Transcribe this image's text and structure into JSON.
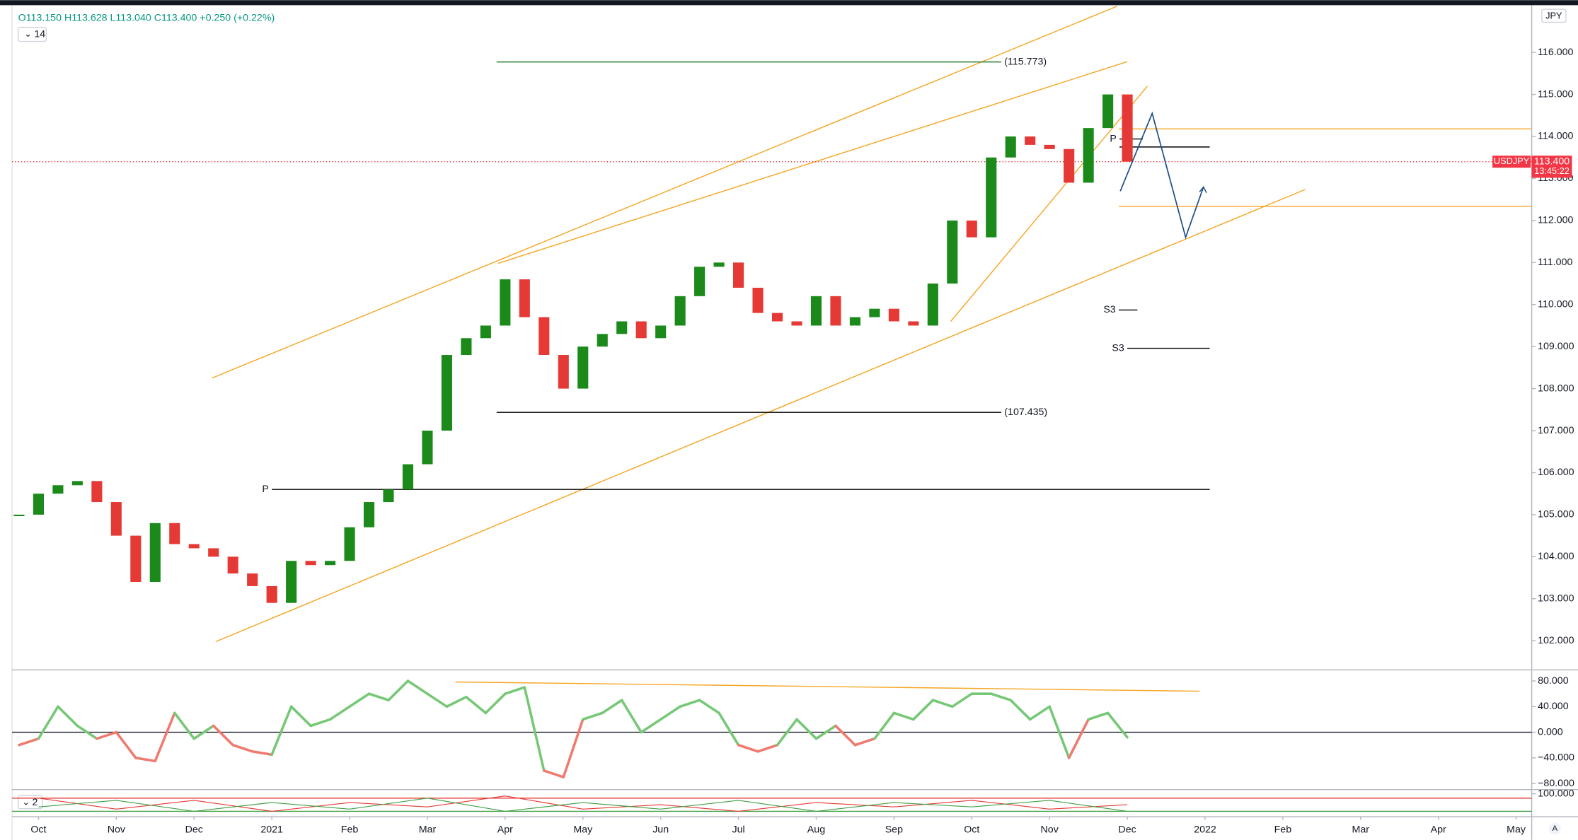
{
  "header": {
    "ohlc": "O113.150 H113.628 L113.040 C113.400 +0.250 (+0.22%)",
    "interval_badge": "14",
    "pane3_badge": "2",
    "currency": "JPY",
    "auto_button": "A"
  },
  "price_tag": {
    "value": 113.4,
    "label": "113.400",
    "countdown": "13:45:22"
  },
  "chart_data": [
    {
      "type": "candle",
      "xlim": [
        -0.34,
        19.2
      ],
      "ylim": [
        101.33,
        117.1
      ],
      "xticks": [
        {
          "value": 0,
          "label": "Oct"
        },
        {
          "value": 1,
          "label": "Nov"
        },
        {
          "value": 2,
          "label": "Dec"
        },
        {
          "value": 3,
          "label": "2021"
        },
        {
          "value": 4,
          "label": "Feb"
        },
        {
          "value": 5,
          "label": "Mar"
        },
        {
          "value": 6,
          "label": "Apr"
        },
        {
          "value": 7,
          "label": "May"
        },
        {
          "value": 8,
          "label": "Jun"
        },
        {
          "value": 9,
          "label": "Jul"
        },
        {
          "value": 10,
          "label": "Aug"
        },
        {
          "value": 11,
          "label": "Sep"
        },
        {
          "value": 12,
          "label": "Oct"
        },
        {
          "value": 13,
          "label": "Nov"
        },
        {
          "value": 14,
          "label": "Dec"
        },
        {
          "value": 15,
          "label": "2022"
        },
        {
          "value": 16,
          "label": "Feb"
        },
        {
          "value": 17,
          "label": "Mar"
        },
        {
          "value": 18,
          "label": "Apr"
        },
        {
          "value": 19,
          "label": "May"
        }
      ],
      "yticks": [
        {
          "value": 102,
          "label": "102.000"
        },
        {
          "value": 103,
          "label": "103.000"
        },
        {
          "value": 104,
          "label": "104.000"
        },
        {
          "value": 105,
          "label": "105.000"
        },
        {
          "value": 106,
          "label": "106.000"
        },
        {
          "value": 107,
          "label": "107.000"
        },
        {
          "value": 108,
          "label": "108.000"
        },
        {
          "value": 109,
          "label": "109.000"
        },
        {
          "value": 110,
          "label": "110.000"
        },
        {
          "value": 111,
          "label": "111.000"
        },
        {
          "value": 112,
          "label": "112.000"
        },
        {
          "value": 113,
          "label": "113.000"
        },
        {
          "value": 114,
          "label": "114.000"
        },
        {
          "value": 115,
          "label": "115.000"
        },
        {
          "value": 116,
          "label": "116.000"
        }
      ],
      "x": [
        -0.25,
        0,
        0.25,
        0.5,
        0.75,
        1,
        1.25,
        1.5,
        1.75,
        2,
        2.25,
        2.5,
        2.75,
        3,
        3.25,
        3.5,
        3.75,
        4,
        4.25,
        4.5,
        4.75,
        5,
        5.25,
        5.5,
        5.75,
        6,
        6.25,
        6.5,
        6.75,
        7,
        7.25,
        7.5,
        7.75,
        8,
        8.25,
        8.5,
        8.75,
        9,
        9.25,
        9.5,
        9.75,
        10,
        10.25,
        10.5,
        10.75,
        11,
        11.25,
        11.5,
        11.75,
        12,
        12.25,
        12.5,
        12.75,
        13,
        13.25,
        13.5,
        13.75,
        14
      ],
      "series": [
        {
          "name": "USDJPY",
          "up_color": "#1b8a1b",
          "down_color": "#e53935",
          "values": [
            105.0,
            105.5,
            105.7,
            105.8,
            105.3,
            104.5,
            103.4,
            104.8,
            104.3,
            104.2,
            104.0,
            103.6,
            103.3,
            102.9,
            103.9,
            103.8,
            103.9,
            104.7,
            105.3,
            105.6,
            106.2,
            107.0,
            108.8,
            109.2,
            109.5,
            110.6,
            109.7,
            108.8,
            108.0,
            109.0,
            109.3,
            109.6,
            109.2,
            109.5,
            110.2,
            110.9,
            111.0,
            110.4,
            109.8,
            109.6,
            109.5,
            110.2,
            109.5,
            109.7,
            109.9,
            109.6,
            109.5,
            110.5,
            112.0,
            111.6,
            113.5,
            114.0,
            113.8,
            113.7,
            112.9,
            114.2,
            115.0,
            113.4
          ]
        }
      ],
      "levels": [
        {
          "label": "(115.773)",
          "value": 115.773,
          "x": [
            5.89,
            12.38
          ],
          "color": "#2e7d32",
          "label_side": "right"
        },
        {
          "label": "(107.435)",
          "value": 107.435,
          "x": [
            5.89,
            12.38
          ],
          "color": "#000000",
          "label_side": "right"
        },
        {
          "label": "P",
          "value": 105.6,
          "x": [
            3.0,
            15.06
          ],
          "color": "#000000",
          "label_side": "left"
        },
        {
          "label": "P",
          "value": 113.94,
          "x": [
            13.9,
            14.2
          ],
          "color": "#000000",
          "label_side": "left"
        },
        {
          "label": "S3",
          "value": 109.87,
          "x": [
            13.89,
            14.13
          ],
          "color": "#000000",
          "label_side": "left"
        },
        {
          "label": "S3",
          "value": 108.96,
          "x": [
            14.0,
            15.06
          ],
          "color": "#000000",
          "label_side": "left"
        }
      ],
      "hlines": [
        {
          "value": 114.18,
          "x": [
            13.89,
            19.2
          ],
          "color": "#f5a623"
        },
        {
          "value": 112.34,
          "x": [
            13.89,
            19.2
          ],
          "color": "#f5a623"
        },
        {
          "value": 113.75,
          "x": [
            13.9,
            15.06
          ],
          "color": "#000000"
        }
      ],
      "trendlines": [
        {
          "points": [
            [
              2.23,
              108.25
            ],
            [
              13.87,
              117.1
            ]
          ],
          "color": "#f5a623"
        },
        {
          "points": [
            [
              5.91,
              110.98
            ],
            [
              14.0,
              115.78
            ]
          ],
          "color": "#f5a623"
        },
        {
          "points": [
            [
              2.28,
              101.98
            ],
            [
              16.29,
              112.74
            ]
          ],
          "color": "#f5a623"
        },
        {
          "points": [
            [
              11.73,
              109.6
            ],
            [
              14.26,
              115.2
            ]
          ],
          "color": "#f5a623"
        }
      ],
      "projection": {
        "color": "#1e4e8c",
        "points": [
          [
            13.91,
            112.7
          ],
          [
            14.32,
            114.55
          ],
          [
            14.75,
            111.6
          ],
          [
            14.98,
            112.8
          ]
        ]
      }
    },
    {
      "type": "oscillator",
      "xlim": [
        -0.34,
        19.2
      ],
      "ylim": [
        -86.3,
        94.1
      ],
      "yticks": [
        {
          "value": 80,
          "label": "80.000"
        },
        {
          "value": 40,
          "label": "40.000"
        },
        {
          "value": 0,
          "label": "0.000"
        },
        {
          "value": -40,
          "label": "−40.000"
        },
        {
          "value": -80,
          "label": "−80.000"
        }
      ],
      "x": [
        -0.25,
        0,
        0.25,
        0.5,
        0.75,
        1,
        1.25,
        1.5,
        1.75,
        2,
        2.25,
        2.5,
        2.75,
        3,
        3.25,
        3.5,
        3.75,
        4,
        4.25,
        4.5,
        4.75,
        5,
        5.25,
        5.5,
        5.75,
        6,
        6.25,
        6.5,
        6.75,
        7,
        7.25,
        7.5,
        7.75,
        8,
        8.25,
        8.5,
        8.75,
        9,
        9.25,
        9.5,
        9.75,
        10,
        10.25,
        10.5,
        10.75,
        11,
        11.25,
        11.5,
        11.75,
        12,
        12.25,
        12.5,
        12.75,
        13,
        13.25,
        13.5,
        13.75,
        14
      ],
      "series": [
        {
          "up_color": "#76c776",
          "down_color": "#ef7a6f",
          "values": [
            -20,
            -10,
            40,
            10,
            -10,
            0,
            -40,
            -45,
            30,
            -10,
            10,
            -20,
            -30,
            -35,
            40,
            10,
            20,
            40,
            60,
            50,
            80,
            60,
            40,
            55,
            30,
            60,
            70,
            -60,
            -70,
            20,
            30,
            50,
            0,
            20,
            40,
            50,
            30,
            -20,
            -30,
            -20,
            20,
            -10,
            10,
            -20,
            -10,
            30,
            20,
            50,
            40,
            60,
            60,
            50,
            20,
            40,
            -40,
            20,
            30,
            -8
          ]
        }
      ],
      "zero_line": 0,
      "trendline": {
        "points": [
          [
            5.36,
            78.4
          ],
          [
            14.93,
            64
          ]
        ],
        "color": "#f5a623"
      }
    },
    {
      "type": "line",
      "xlim": [
        -0.34,
        19.2
      ],
      "ylim": [
        0,
        110
      ],
      "yticks": [
        {
          "value": 100,
          "label": "100.000"
        }
      ],
      "x": [
        0,
        1,
        2,
        3,
        4,
        5,
        6,
        7,
        8,
        9,
        10,
        11,
        12,
        13,
        14
      ],
      "series": [
        {
          "color": "#e53935",
          "values": [
            80,
            30,
            70,
            20,
            60,
            40,
            90,
            30,
            50,
            20,
            60,
            40,
            70,
            30,
            50
          ]
        },
        {
          "color": "#43a047",
          "values": [
            40,
            70,
            20,
            60,
            30,
            80,
            20,
            60,
            30,
            70,
            20,
            60,
            40,
            70,
            20
          ]
        }
      ],
      "level_lines": [
        {
          "value": 80,
          "color": "#e53935"
        },
        {
          "value": 20,
          "color": "#43a047"
        }
      ]
    }
  ]
}
